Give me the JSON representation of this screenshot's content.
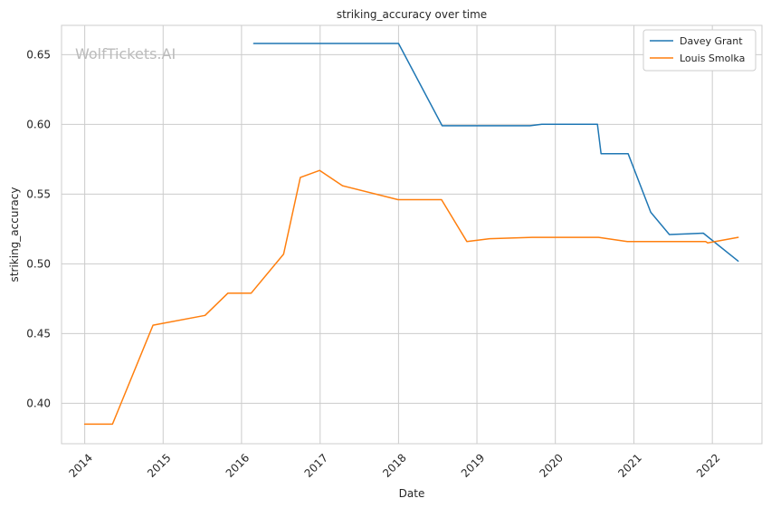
{
  "chart_data": {
    "type": "line",
    "title": "striking_accuracy over time",
    "xlabel": "Date",
    "ylabel": "striking_accuracy",
    "watermark": "WolfTickets.AI",
    "x_ticks": [
      "2014",
      "2015",
      "2016",
      "2017",
      "2018",
      "2019",
      "2020",
      "2021",
      "2022"
    ],
    "y_ticks": [
      "0.40",
      "0.45",
      "0.50",
      "0.55",
      "0.60",
      "0.65"
    ],
    "xlim": [
      "2013-09-15",
      "2022-08-20"
    ],
    "ylim": [
      0.371,
      0.671
    ],
    "grid": true,
    "legend_position": "top-right",
    "series": [
      {
        "name": "Davey Grant",
        "color": "#1f77b4",
        "points": [
          [
            "2016-02-27",
            0.658
          ],
          [
            "2018-01-01",
            0.658
          ],
          [
            "2018-07-23",
            0.599
          ],
          [
            "2019-09-05",
            0.599
          ],
          [
            "2019-10-30",
            0.6
          ],
          [
            "2020-07-15",
            0.6
          ],
          [
            "2020-08-01",
            0.579
          ],
          [
            "2020-12-05",
            0.579
          ],
          [
            "2021-03-20",
            0.537
          ],
          [
            "2021-06-15",
            0.521
          ],
          [
            "2021-11-20",
            0.522
          ],
          [
            "2022-05-01",
            0.502
          ]
        ]
      },
      {
        "name": "Louis Smolka",
        "color": "#ff7f0e",
        "points": [
          [
            "2014-01-01",
            0.385
          ],
          [
            "2014-05-10",
            0.385
          ],
          [
            "2014-11-15",
            0.456
          ],
          [
            "2015-07-15",
            0.463
          ],
          [
            "2015-10-30",
            0.479
          ],
          [
            "2016-02-15",
            0.479
          ],
          [
            "2016-07-15",
            0.507
          ],
          [
            "2016-10-01",
            0.562
          ],
          [
            "2016-12-30",
            0.567
          ],
          [
            "2017-04-15",
            0.556
          ],
          [
            "2017-12-30",
            0.546
          ],
          [
            "2018-07-20",
            0.546
          ],
          [
            "2018-11-15",
            0.516
          ],
          [
            "2019-03-01",
            0.518
          ],
          [
            "2019-09-15",
            0.519
          ],
          [
            "2020-07-20",
            0.519
          ],
          [
            "2020-12-01",
            0.516
          ],
          [
            "2021-12-01",
            0.516
          ],
          [
            "2021-12-10",
            0.515
          ],
          [
            "2022-05-01",
            0.519
          ]
        ]
      }
    ]
  }
}
